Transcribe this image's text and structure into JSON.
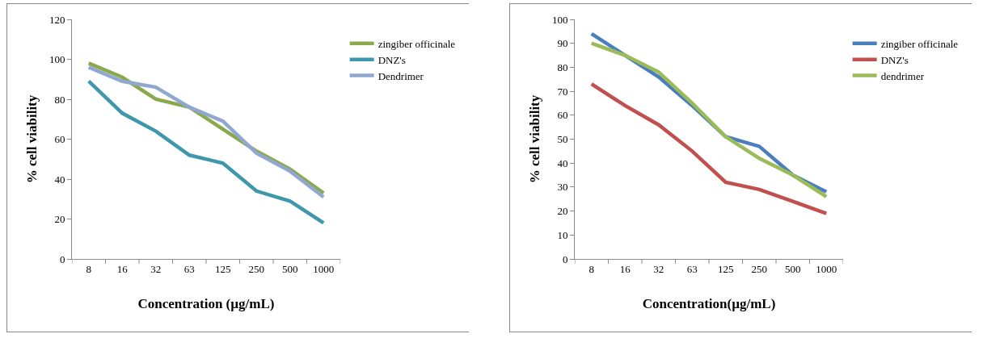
{
  "chart_data": [
    {
      "type": "line",
      "xlabel": "Concentration (µg/mL)",
      "ylabel": "% cell viability",
      "categories": [
        "8",
        "16",
        "32",
        "63",
        "125",
        "250",
        "500",
        "1000"
      ],
      "ylim": [
        0,
        120
      ],
      "yticks": [
        0,
        20,
        40,
        60,
        80,
        100,
        120
      ],
      "grid": false,
      "legend": "top right",
      "marker": "none",
      "line_style": "solid",
      "series": [
        {
          "name": "zingiber officinale",
          "color": "#8aa84c",
          "values": [
            98,
            91,
            80,
            76,
            65,
            54,
            45,
            33
          ]
        },
        {
          "name": "DNZ's",
          "color": "#3f97ad",
          "values": [
            89,
            73,
            64,
            52,
            48,
            34,
            29,
            18
          ]
        },
        {
          "name": "Dendrimer",
          "color": "#90a8d0",
          "values": [
            96,
            89,
            86,
            76,
            69,
            53,
            44,
            31
          ]
        }
      ]
    },
    {
      "type": "line",
      "xlabel": "Concentration(µg/mL)",
      "ylabel": "% cell viability",
      "categories": [
        "8",
        "16",
        "32",
        "63",
        "125",
        "250",
        "500",
        "1000"
      ],
      "ylim": [
        0,
        100
      ],
      "yticks": [
        0,
        10,
        20,
        30,
        40,
        50,
        60,
        70,
        80,
        90,
        100
      ],
      "grid": false,
      "legend": "top right",
      "marker": "none",
      "line_style": "solid",
      "series": [
        {
          "name": "zingiber officinale",
          "color": "#4a7ebf",
          "values": [
            94,
            85,
            76,
            64,
            51,
            47,
            35,
            28
          ]
        },
        {
          "name": "DNZ's",
          "color": "#c0504d",
          "values": [
            73,
            64,
            56,
            45,
            32,
            29,
            24,
            19
          ]
        },
        {
          "name": "dendrimer",
          "color": "#9bbb59",
          "values": [
            90,
            85,
            78,
            65,
            51,
            42,
            35,
            26
          ]
        }
      ]
    }
  ]
}
